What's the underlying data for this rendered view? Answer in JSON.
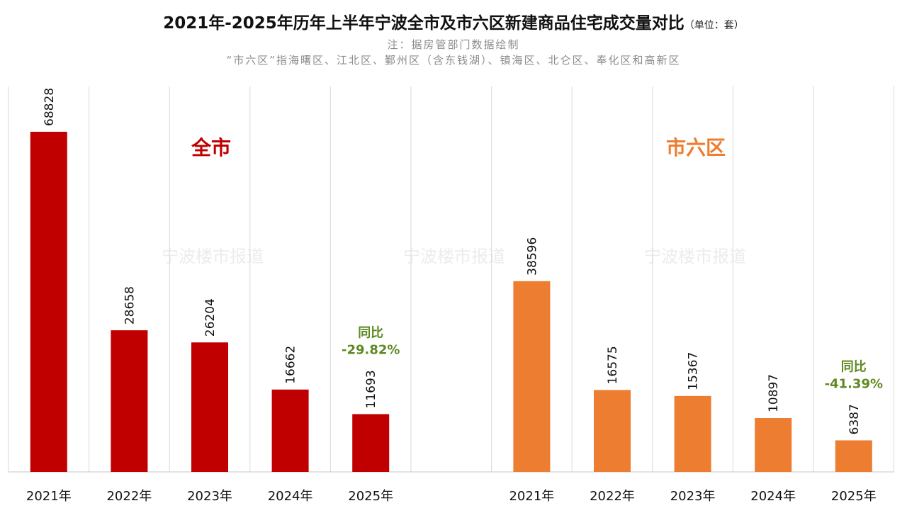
{
  "title": {
    "main": "2021年-2025年历年上半年宁波全市及市六区新建商品住宅成交量对比",
    "unit": "（单位：套）"
  },
  "notes": {
    "source": "注：据房管部门数据绘制",
    "definition": "“市六区”指海曙区、江北区、鄞州区（含东钱湖）、镇海区、北仑区、奉化区和高新区"
  },
  "watermark": "宁波楼市报道",
  "chart_data": [
    {
      "type": "bar",
      "group_label": "全市",
      "color": "#c00000",
      "categories": [
        "2021年",
        "2022年",
        "2023年",
        "2024年",
        "2025年"
      ],
      "values": [
        68828,
        28658,
        26204,
        16662,
        11693
      ],
      "yoy": {
        "label": "同比",
        "value": "-29.82%"
      },
      "ylim": [
        0,
        78000
      ],
      "grid": true
    },
    {
      "type": "bar",
      "group_label": "市六区",
      "color": "#ed7d31",
      "categories": [
        "2021年",
        "2022年",
        "2023年",
        "2024年",
        "2025年"
      ],
      "values": [
        38596,
        16575,
        15367,
        10897,
        6387
      ],
      "yoy": {
        "label": "同比",
        "value": "-41.39%"
      },
      "ylim": [
        0,
        78000
      ],
      "grid": true
    }
  ],
  "colors": {
    "gridline": "#d9d9d9",
    "axis": "#d0d0d0",
    "yoy_text": "#5e8a1f",
    "title_text": "#111111",
    "note_text": "#8c8c8c"
  }
}
